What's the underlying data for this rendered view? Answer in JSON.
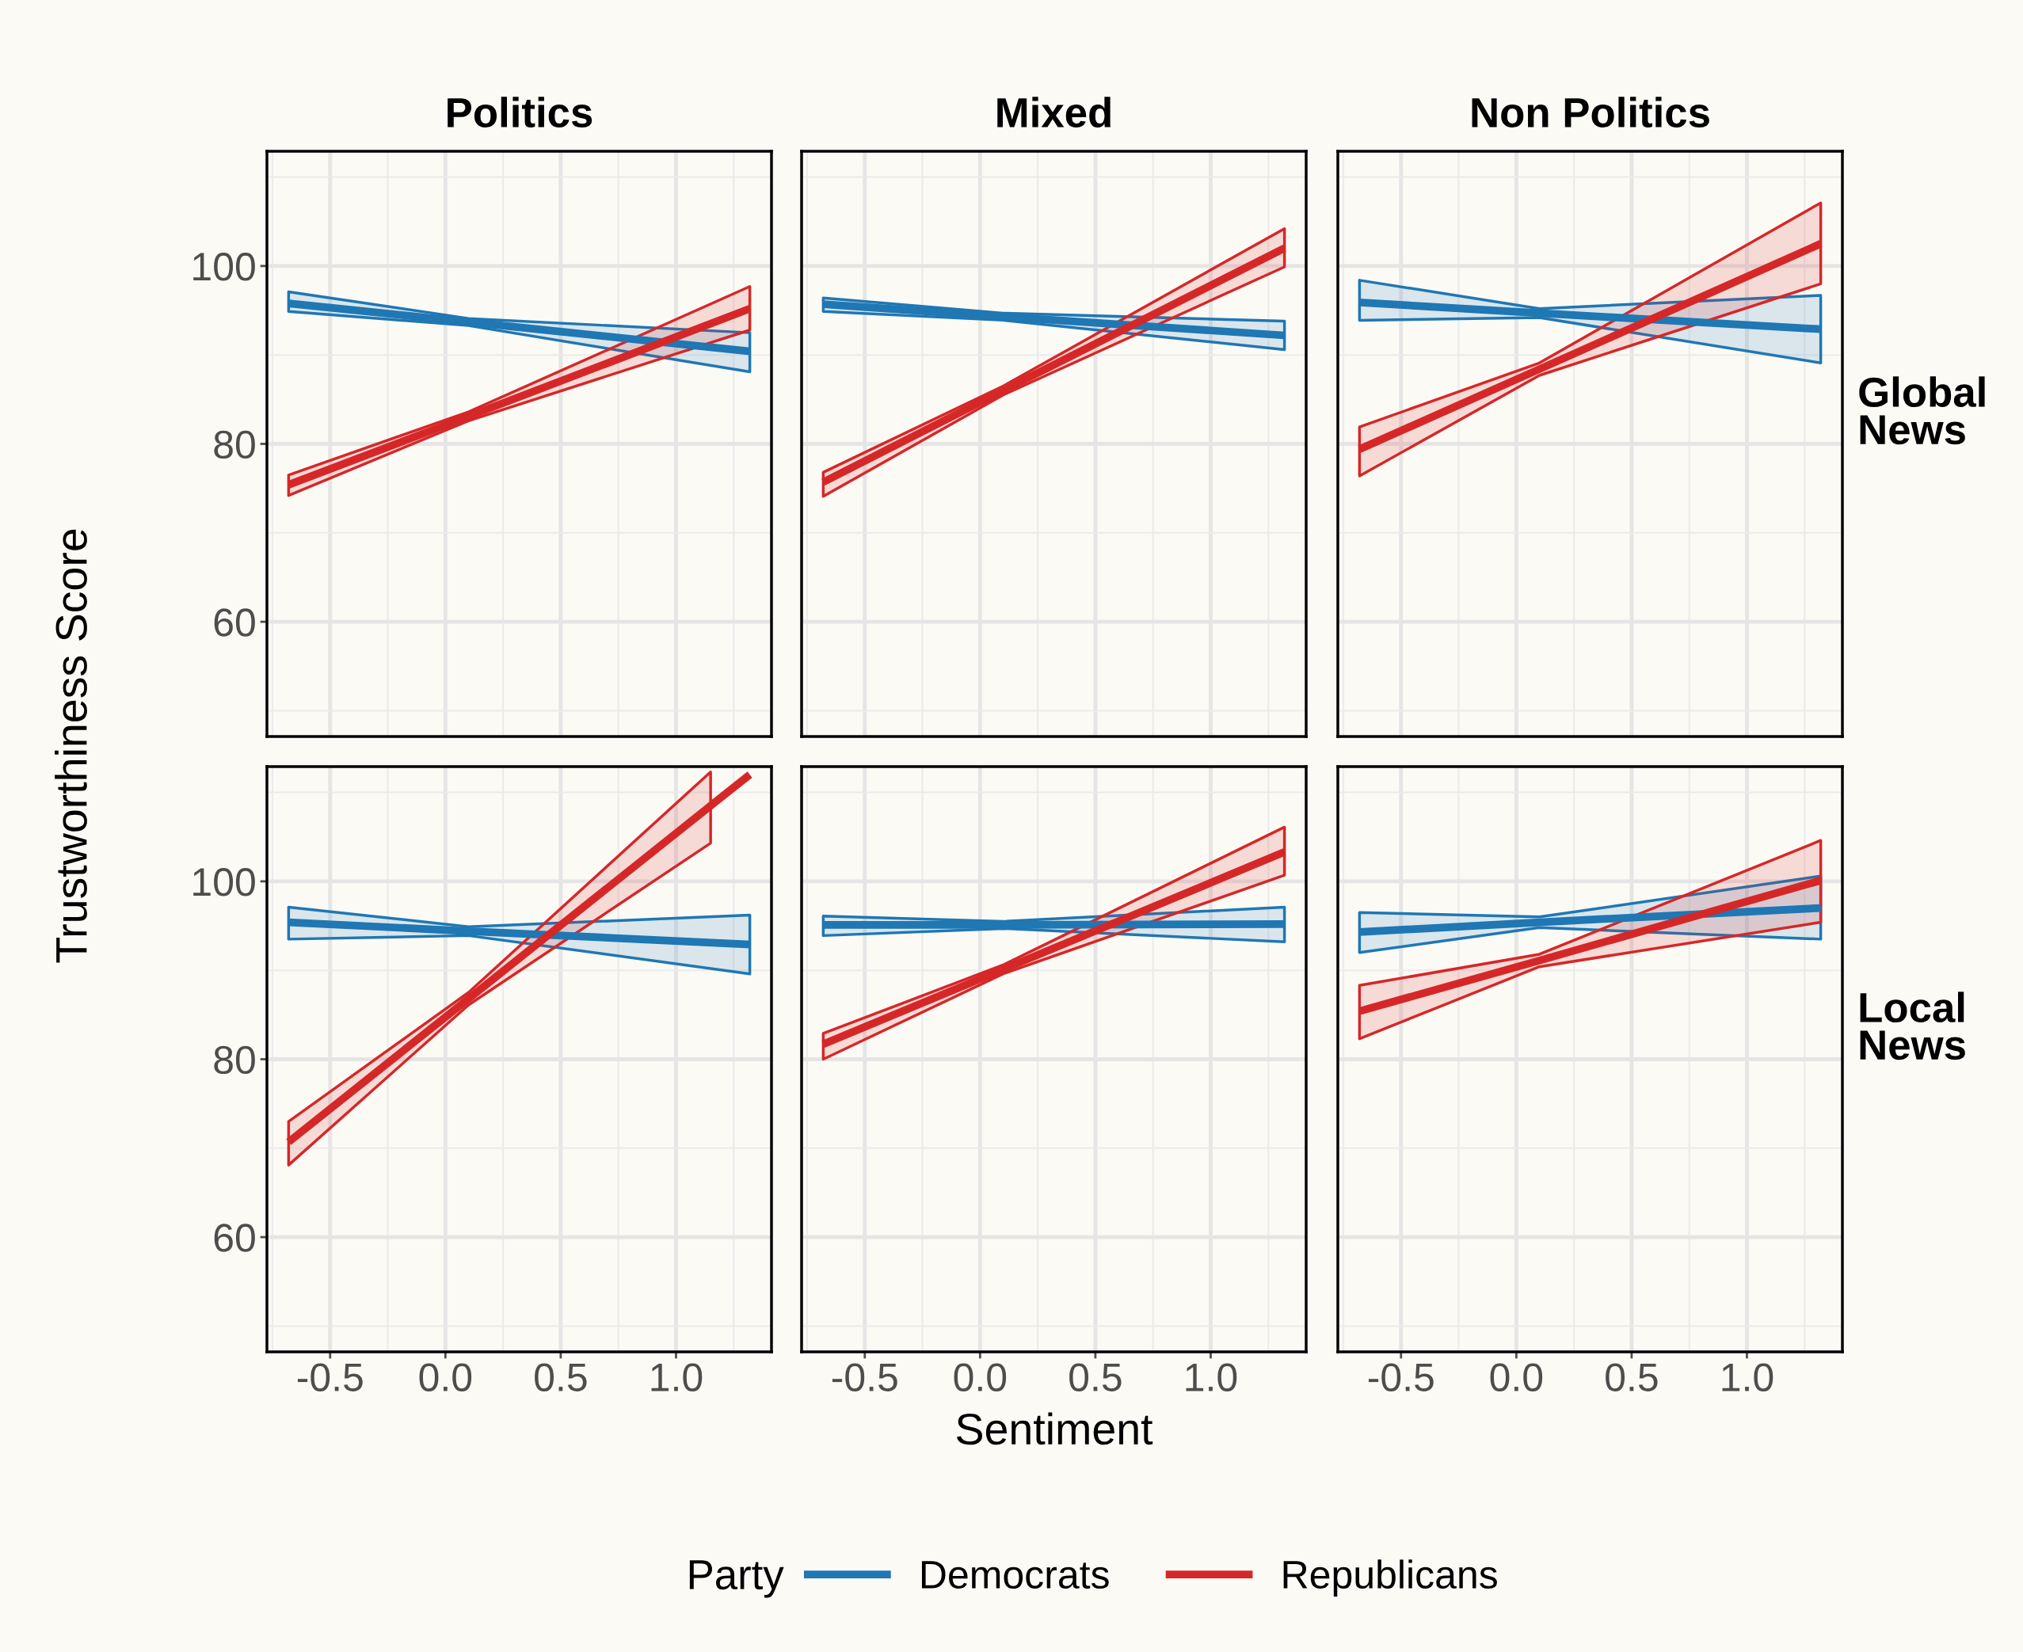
{
  "chart_data": [
    {
      "type": "line",
      "title": "Politics",
      "ylabel": "Trustworthiness Score",
      "legend_title": "Party",
      "legend": "bottom",
      "xlim": [
        -0.774,
        1.414
      ],
      "ylim": [
        47.1,
        112.9
      ],
      "xticks": [
        -0.5,
        0,
        0.5,
        1
      ],
      "yticks": [
        60,
        80,
        100
      ],
      "grid": true,
      "tick_labels": "y",
      "marker": "none",
      "line_style": "solid",
      "series": [
        {
          "name": "Democrats",
          "color": "#1f77b4",
          "x": [
            -0.68,
            0.1,
            1.32
          ],
          "values": [
            95.8,
            93.7,
            90.4
          ],
          "lower": [
            94.9,
            93.3,
            88.1
          ],
          "upper": [
            97.1,
            94.1,
            92.5
          ]
        },
        {
          "name": "Republicans",
          "color": "#d62728",
          "x": [
            -0.68,
            0.1,
            1.32
          ],
          "values": [
            75.4,
            83.1,
            95.2
          ],
          "lower": [
            74.2,
            82.6,
            92.8
          ],
          "upper": [
            76.5,
            83.6,
            97.7
          ]
        }
      ]
    },
    {
      "type": "line",
      "title": "Mixed",
      "xlim": [
        -0.774,
        1.414
      ],
      "ylim": [
        47.1,
        112.9
      ],
      "xticks": [
        -0.5,
        0,
        0.5,
        1
      ],
      "yticks": [
        60,
        80,
        100
      ],
      "grid": true,
      "tick_labels": false,
      "marker": "none",
      "line_style": "solid",
      "series": [
        {
          "color": "#1f77b4",
          "x": [
            -0.68,
            0.1,
            1.32
          ],
          "values": [
            95.7,
            94.3,
            92.2
          ],
          "lower": [
            94.9,
            93.9,
            90.6
          ],
          "upper": [
            96.4,
            94.7,
            93.8
          ]
        },
        {
          "color": "#d62728",
          "x": [
            -0.68,
            0.1,
            1.32
          ],
          "values": [
            75.7,
            86.0,
            102.0
          ],
          "lower": [
            74.1,
            85.5,
            99.9
          ],
          "upper": [
            76.8,
            86.5,
            104.2
          ]
        }
      ]
    },
    {
      "type": "line",
      "title": "Non Politics",
      "annotations": [
        "Global\nNews"
      ],
      "xlim": [
        -0.774,
        1.414
      ],
      "ylim": [
        47.1,
        112.9
      ],
      "xticks": [
        -0.5,
        0,
        0.5,
        1
      ],
      "yticks": [
        60,
        80,
        100
      ],
      "grid": true,
      "tick_labels": false,
      "marker": "none",
      "line_style": "solid",
      "series": [
        {
          "color": "#1f77b4",
          "x": [
            -0.68,
            0.1,
            1.32
          ],
          "values": [
            95.9,
            94.7,
            92.9
          ],
          "lower": [
            93.9,
            94.2,
            89.1
          ],
          "upper": [
            98.4,
            95.2,
            96.7
          ]
        },
        {
          "color": "#d62728",
          "x": [
            -0.68,
            0.1,
            1.32
          ],
          "values": [
            79.4,
            88.4,
            102.5
          ],
          "lower": [
            76.4,
            87.7,
            98.0
          ],
          "upper": [
            81.9,
            89.1,
            107.1
          ]
        }
      ]
    },
    {
      "type": "line",
      "xlim": [
        -0.774,
        1.414
      ],
      "ylim": [
        47.1,
        112.9
      ],
      "xticks": [
        {
          "value": -0.5,
          "label": "-0.5"
        },
        {
          "value": 0,
          "label": "0.0"
        },
        {
          "value": 0.5,
          "label": "0.5"
        },
        {
          "value": 1,
          "label": "1.0"
        }
      ],
      "yticks": [
        60,
        80,
        100
      ],
      "grid": true,
      "marker": "none",
      "line_style": "solid",
      "series": [
        {
          "color": "#1f77b4",
          "x": [
            -0.68,
            0.1,
            1.32
          ],
          "values": [
            95.4,
            94.4,
            92.9
          ],
          "lower": [
            93.5,
            93.9,
            89.6
          ],
          "upper": [
            97.1,
            94.9,
            96.2
          ]
        },
        {
          "color": "#d62728",
          "x": [
            -0.68,
            0.1,
            1.15,
            1.32
          ],
          "values": [
            70.7,
            86.8,
            108.5,
            112.0
          ],
          "lower": [
            68.1,
            86.1,
            104.3,
            null
          ],
          "upper": [
            73.0,
            87.5,
            112.3,
            null
          ]
        }
      ]
    },
    {
      "type": "line",
      "xlabel": "Sentiment",
      "xlim": [
        -0.774,
        1.414
      ],
      "ylim": [
        47.1,
        112.9
      ],
      "xticks": [
        {
          "value": -0.5,
          "label": "-0.5"
        },
        {
          "value": 0,
          "label": "0.0"
        },
        {
          "value": 0.5,
          "label": "0.5"
        },
        {
          "value": 1,
          "label": "1.0"
        }
      ],
      "yticks": [
        60,
        80,
        100
      ],
      "grid": true,
      "tick_labels": "x",
      "marker": "none",
      "line_style": "solid",
      "series": [
        {
          "color": "#1f77b4",
          "x": [
            -0.68,
            0.1,
            1.32
          ],
          "values": [
            95.1,
            95.1,
            95.2
          ],
          "lower": [
            93.9,
            94.7,
            93.2
          ],
          "upper": [
            96.1,
            95.5,
            97.1
          ]
        },
        {
          "color": "#d62728",
          "x": [
            -0.68,
            0.1,
            1.32
          ],
          "values": [
            81.7,
            90.1,
            103.3
          ],
          "lower": [
            80.0,
            89.6,
            100.7
          ],
          "upper": [
            82.9,
            90.6,
            106.1
          ]
        }
      ]
    },
    {
      "type": "line",
      "annotations": [
        "Local\nNews"
      ],
      "xlim": [
        -0.774,
        1.414
      ],
      "ylim": [
        47.1,
        112.9
      ],
      "xticks": [
        {
          "value": -0.5,
          "label": "-0.5"
        },
        {
          "value": 0,
          "label": "0.0"
        },
        {
          "value": 0.5,
          "label": "0.5"
        },
        {
          "value": 1,
          "label": "1.0"
        }
      ],
      "yticks": [
        60,
        80,
        100
      ],
      "grid": true,
      "tick_labels": "x",
      "marker": "none",
      "line_style": "solid",
      "series": [
        {
          "color": "#1f77b4",
          "x": [
            -0.68,
            0.1,
            1.32
          ],
          "values": [
            94.3,
            95.4,
            97.0
          ],
          "lower": [
            92.0,
            94.8,
            93.5
          ],
          "upper": [
            96.5,
            96.0,
            100.6
          ]
        },
        {
          "color": "#d62728",
          "x": [
            -0.68,
            0.1,
            1.32
          ],
          "values": [
            85.4,
            91.1,
            100.1
          ],
          "lower": [
            82.3,
            90.4,
            95.4
          ],
          "upper": [
            88.3,
            91.8,
            104.6
          ]
        }
      ]
    }
  ]
}
